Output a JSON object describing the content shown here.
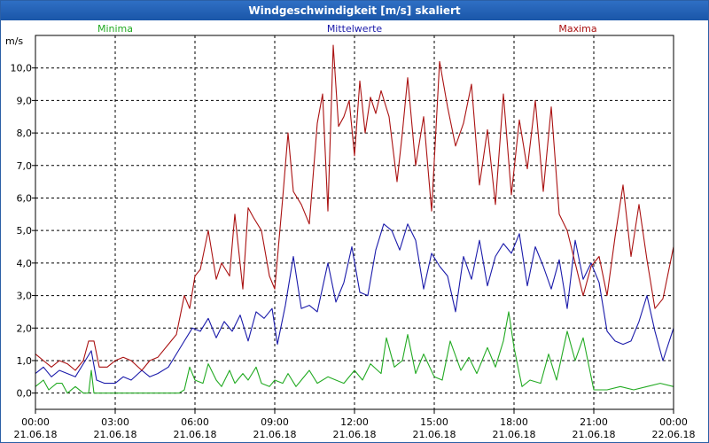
{
  "chart_data": {
    "type": "line",
    "title": "Windgeschwindigkeit [m/s] skaliert",
    "ylabel": "m/s",
    "ylim": [
      -0.5,
      11.0
    ],
    "yticks": [
      0,
      1,
      2,
      3,
      4,
      5,
      6,
      7,
      8,
      9,
      10
    ],
    "ytick_labels": [
      "0,0",
      "1,0",
      "2,0",
      "3,0",
      "4,0",
      "5,0",
      "6,0",
      "7,0",
      "8,0",
      "9,0",
      "10,0"
    ],
    "xlim_hours": [
      0,
      24
    ],
    "xticks_hours": [
      0,
      3,
      6,
      9,
      12,
      15,
      18,
      21,
      24
    ],
    "xtick_times": [
      "00:00",
      "03:00",
      "06:00",
      "09:00",
      "12:00",
      "15:00",
      "18:00",
      "21:00",
      "00:00"
    ],
    "xtick_dates": [
      "21.06.18",
      "21.06.18",
      "21.06.18",
      "21.06.18",
      "21.06.18",
      "21.06.18",
      "21.06.18",
      "21.06.18",
      "22.06.18"
    ],
    "grid": true,
    "legend": [
      {
        "name": "Minima",
        "color": "#22aa22"
      },
      {
        "name": "Mittelwerte",
        "color": "#1a1aaa"
      },
      {
        "name": "Maxima",
        "color": "#aa1111"
      }
    ],
    "series": [
      {
        "name": "Minima",
        "color": "#22aa22",
        "x": [
          0,
          0.3,
          0.5,
          0.8,
          1.0,
          1.2,
          1.5,
          1.8,
          2.0,
          2.1,
          2.2,
          2.5,
          3.0,
          3.5,
          4.0,
          4.5,
          5.0,
          5.4,
          5.6,
          5.8,
          6.0,
          6.3,
          6.5,
          6.8,
          7.0,
          7.3,
          7.5,
          7.8,
          8.0,
          8.3,
          8.5,
          8.8,
          9.0,
          9.3,
          9.5,
          9.8,
          10.0,
          10.3,
          10.6,
          11.0,
          11.3,
          11.6,
          12.0,
          12.3,
          12.6,
          13.0,
          13.2,
          13.5,
          13.8,
          14.0,
          14.3,
          14.6,
          15.0,
          15.3,
          15.6,
          16.0,
          16.3,
          16.6,
          17.0,
          17.3,
          17.6,
          17.8,
          18.0,
          18.3,
          18.6,
          19.0,
          19.3,
          19.6,
          20.0,
          20.3,
          20.6,
          21.0,
          21.5,
          22.0,
          22.5,
          23.0,
          23.5,
          24.0
        ],
        "values": [
          0.2,
          0.4,
          0.1,
          0.3,
          0.3,
          0.0,
          0.2,
          0.0,
          0.0,
          0.7,
          0.0,
          0.0,
          0.0,
          0.0,
          0.0,
          0.0,
          0.0,
          0.0,
          0.1,
          0.8,
          0.4,
          0.3,
          0.9,
          0.4,
          0.2,
          0.7,
          0.3,
          0.6,
          0.4,
          0.8,
          0.3,
          0.2,
          0.4,
          0.3,
          0.6,
          0.2,
          0.4,
          0.7,
          0.3,
          0.5,
          0.4,
          0.3,
          0.7,
          0.4,
          0.9,
          0.6,
          1.7,
          0.8,
          1.0,
          1.8,
          0.6,
          1.2,
          0.5,
          0.4,
          1.6,
          0.7,
          1.1,
          0.6,
          1.4,
          0.8,
          1.6,
          2.5,
          1.4,
          0.2,
          0.4,
          0.3,
          1.2,
          0.4,
          1.9,
          1.0,
          1.7,
          0.1,
          0.1,
          0.2,
          0.1,
          0.2,
          0.3,
          0.2
        ]
      },
      {
        "name": "Mittelwerte",
        "color": "#1a1aaa",
        "x": [
          0,
          0.3,
          0.6,
          0.9,
          1.2,
          1.5,
          1.8,
          2.1,
          2.3,
          2.6,
          3.0,
          3.3,
          3.6,
          4.0,
          4.3,
          4.6,
          5.0,
          5.3,
          5.6,
          5.9,
          6.2,
          6.5,
          6.8,
          7.1,
          7.4,
          7.7,
          8.0,
          8.3,
          8.6,
          8.9,
          9.1,
          9.4,
          9.7,
          10.0,
          10.3,
          10.6,
          11.0,
          11.3,
          11.6,
          11.9,
          12.2,
          12.5,
          12.8,
          13.1,
          13.4,
          13.7,
          14.0,
          14.3,
          14.6,
          14.9,
          15.2,
          15.5,
          15.8,
          16.1,
          16.4,
          16.7,
          17.0,
          17.3,
          17.6,
          17.9,
          18.2,
          18.5,
          18.8,
          19.1,
          19.4,
          19.7,
          20.0,
          20.3,
          20.6,
          20.9,
          21.2,
          21.5,
          21.8,
          22.1,
          22.4,
          22.7,
          23.0,
          23.3,
          23.6,
          24.0
        ],
        "values": [
          0.6,
          0.8,
          0.5,
          0.7,
          0.6,
          0.5,
          0.9,
          1.3,
          0.4,
          0.3,
          0.3,
          0.5,
          0.4,
          0.7,
          0.5,
          0.6,
          0.8,
          1.2,
          1.6,
          2.0,
          1.9,
          2.3,
          1.7,
          2.2,
          1.9,
          2.4,
          1.6,
          2.5,
          2.3,
          2.6,
          1.5,
          2.7,
          4.2,
          2.6,
          2.7,
          2.5,
          4.0,
          2.8,
          3.4,
          4.5,
          3.1,
          3.0,
          4.4,
          5.2,
          5.0,
          4.4,
          5.2,
          4.7,
          3.2,
          4.3,
          3.9,
          3.6,
          2.5,
          4.2,
          3.5,
          4.7,
          3.3,
          4.2,
          4.6,
          4.3,
          4.9,
          3.3,
          4.5,
          3.9,
          3.2,
          4.1,
          2.6,
          4.7,
          3.5,
          4.0,
          3.4,
          1.9,
          1.6,
          1.5,
          1.6,
          2.2,
          3.0,
          1.9,
          1.0,
          2.0
        ]
      },
      {
        "name": "Maxima",
        "color": "#aa1111",
        "x": [
          0,
          0.3,
          0.6,
          0.9,
          1.2,
          1.5,
          1.8,
          2.0,
          2.2,
          2.4,
          2.7,
          3.0,
          3.3,
          3.6,
          4.0,
          4.3,
          4.6,
          5.0,
          5.3,
          5.6,
          5.8,
          6.0,
          6.2,
          6.5,
          6.8,
          7.0,
          7.3,
          7.5,
          7.8,
          8.0,
          8.2,
          8.5,
          8.8,
          9.0,
          9.3,
          9.5,
          9.7,
          10.0,
          10.3,
          10.6,
          10.8,
          11.0,
          11.2,
          11.4,
          11.6,
          11.8,
          12.0,
          12.2,
          12.4,
          12.6,
          12.8,
          13.0,
          13.3,
          13.6,
          13.8,
          14.0,
          14.3,
          14.6,
          14.9,
          15.2,
          15.5,
          15.8,
          16.1,
          16.4,
          16.7,
          17.0,
          17.3,
          17.6,
          17.9,
          18.2,
          18.5,
          18.8,
          19.1,
          19.4,
          19.7,
          20.0,
          20.3,
          20.6,
          20.9,
          21.2,
          21.5,
          21.8,
          22.1,
          22.4,
          22.7,
          23.0,
          23.3,
          23.6,
          24.0
        ],
        "values": [
          1.2,
          1.0,
          0.8,
          1.0,
          0.9,
          0.7,
          1.0,
          1.6,
          1.6,
          0.8,
          0.8,
          1.0,
          1.1,
          1.0,
          0.7,
          1.0,
          1.1,
          1.5,
          1.8,
          3.0,
          2.6,
          3.6,
          3.8,
          5.0,
          3.5,
          4.0,
          3.6,
          5.5,
          3.2,
          5.7,
          5.4,
          5.0,
          3.6,
          3.2,
          6.0,
          8.0,
          6.2,
          5.8,
          5.2,
          8.3,
          9.2,
          5.6,
          10.7,
          8.2,
          8.5,
          9.0,
          7.3,
          9.6,
          8.0,
          9.1,
          8.6,
          9.3,
          8.5,
          6.5,
          8.0,
          9.7,
          7.0,
          8.5,
          5.6,
          10.2,
          8.8,
          7.6,
          8.3,
          9.5,
          6.4,
          8.1,
          5.8,
          9.2,
          6.1,
          8.4,
          6.9,
          9.0,
          6.2,
          8.8,
          5.5,
          5.0,
          4.0,
          3.0,
          3.9,
          4.2,
          3.0,
          4.8,
          6.4,
          4.2,
          5.8,
          4.1,
          2.6,
          2.9,
          4.5
        ]
      }
    ]
  }
}
